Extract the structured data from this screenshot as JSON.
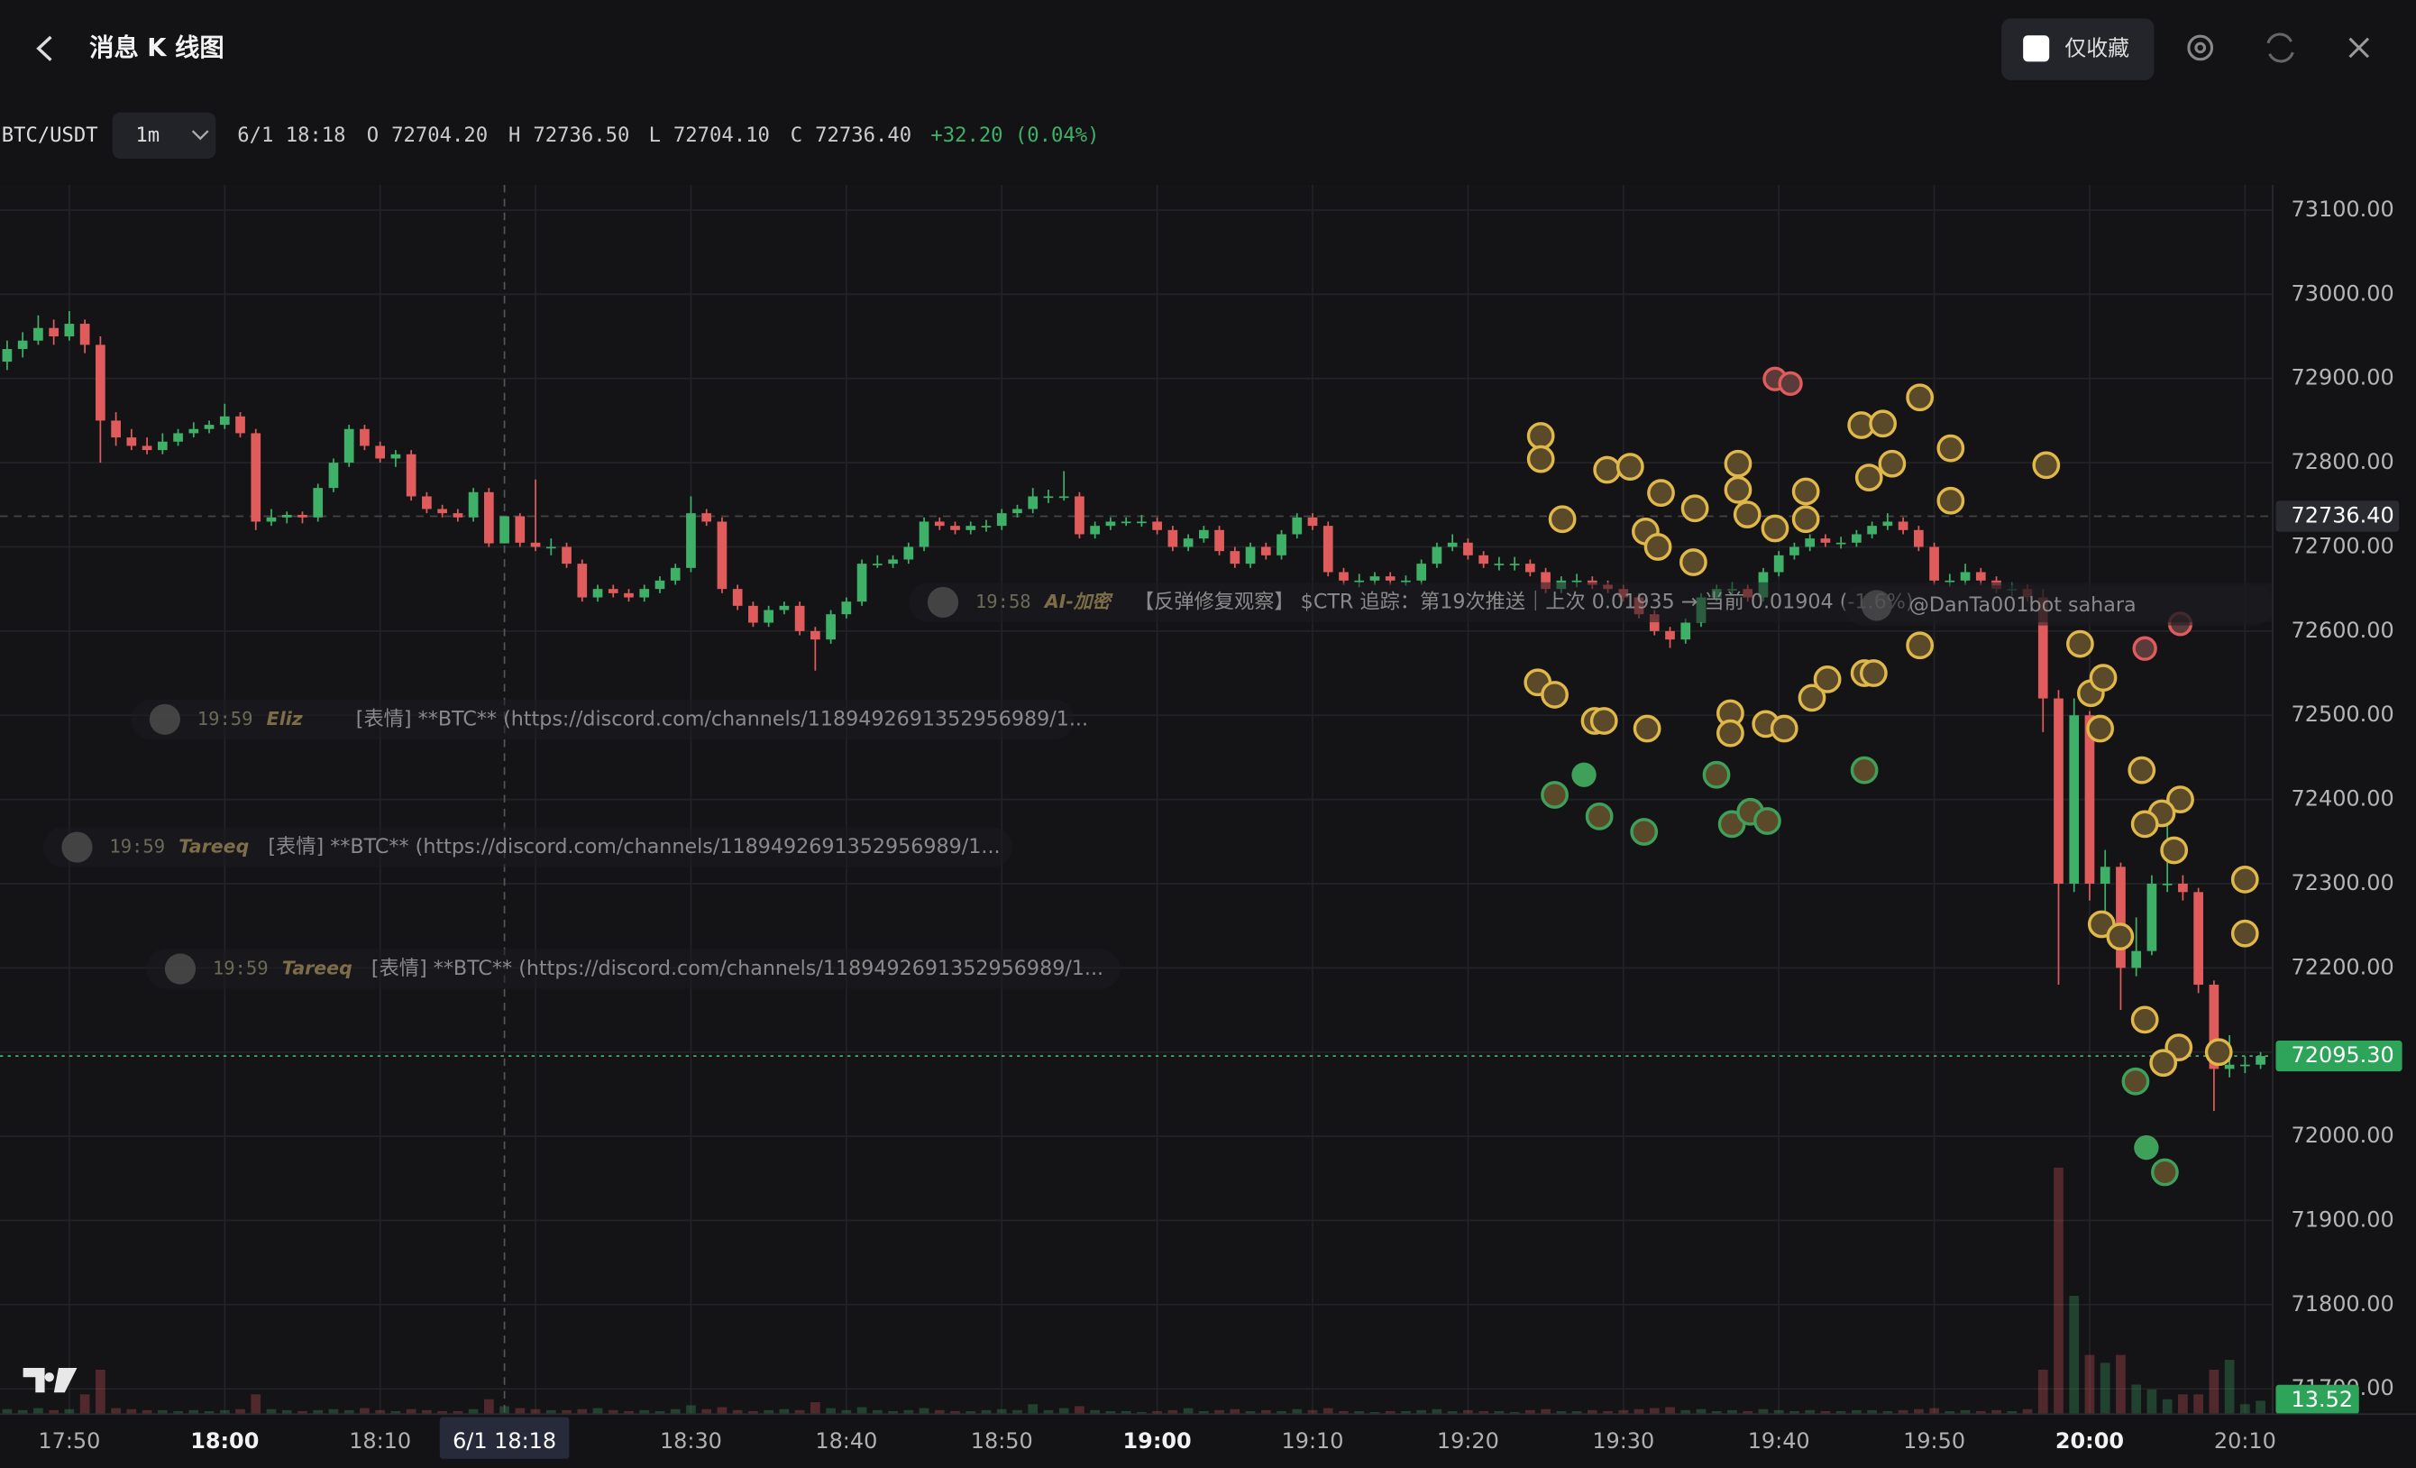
{
  "header": {
    "title": "消息 K 线图",
    "favorites_only": "仅收藏"
  },
  "chart_data": {
    "type": "candlestick",
    "symbol": "BTC/USDT",
    "interval": "1m",
    "legend": {
      "time": "6/1 18:18",
      "items": [
        {
          "label": "O",
          "value": "72704.20"
        },
        {
          "label": "H",
          "value": "72736.50"
        },
        {
          "label": "L",
          "value": "72704.10"
        },
        {
          "label": "C",
          "value": "72736.40"
        }
      ],
      "change": "+32.20 (0.04%)"
    },
    "ylim": [
      71670,
      73130
    ],
    "yticks": [
      {
        "value": 73100,
        "label": "73100.00"
      },
      {
        "value": 73000,
        "label": "73000.00"
      },
      {
        "value": 72900,
        "label": "72900.00"
      },
      {
        "value": 72800,
        "label": "72800.00"
      },
      {
        "value": 72700,
        "label": "72700.00"
      },
      {
        "value": 72600,
        "label": "72600.00"
      },
      {
        "value": 72500,
        "label": "72500.00"
      },
      {
        "value": 72400,
        "label": "72400.00"
      },
      {
        "value": 72300,
        "label": "72300.00"
      },
      {
        "value": 72200,
        "label": "72200.00"
      },
      {
        "value": 72100,
        "label": "72100.00"
      },
      {
        "value": 72000,
        "label": "72000.00"
      },
      {
        "value": 71900,
        "label": "71900.00"
      },
      {
        "value": 71800,
        "label": "71800.00"
      },
      {
        "value": 71700,
        "label": "71700.00"
      }
    ],
    "xlim": [
      -0.46,
      145.78
    ],
    "xticks": [
      {
        "value": 4,
        "label": "17:50"
      },
      {
        "value": 14,
        "label": "18:00"
      },
      {
        "value": 24,
        "label": "18:10"
      },
      {
        "value": 34,
        "label": "18:20"
      },
      {
        "value": 44,
        "label": "18:30"
      },
      {
        "value": 54,
        "label": "18:40"
      },
      {
        "value": 64,
        "label": "18:50"
      },
      {
        "value": 74,
        "label": "19:00"
      },
      {
        "value": 84,
        "label": "19:10"
      },
      {
        "value": 94,
        "label": "19:20"
      },
      {
        "value": 104,
        "label": "19:30"
      },
      {
        "value": 114,
        "label": "19:40"
      },
      {
        "value": 124,
        "label": "19:50"
      },
      {
        "value": 134,
        "label": "20:00"
      },
      {
        "value": 144,
        "label": "20:10"
      }
    ],
    "grid": true,
    "up_color": "#3fb068",
    "down_color": "#e05c5c",
    "crosshair_index": 32,
    "last_price": 72095.3,
    "last_price_label": "72095.30",
    "candles": [
      [
        72920,
        72945,
        72910,
        72935
      ],
      [
        72935,
        72955,
        72925,
        72945
      ],
      [
        72945,
        72975,
        72940,
        72960
      ],
      [
        72960,
        72970,
        72940,
        72950
      ],
      [
        72950,
        72980,
        72945,
        72965
      ],
      [
        72965,
        72970,
        72930,
        72940
      ],
      [
        72940,
        72950,
        72800,
        72850
      ],
      [
        72850,
        72860,
        72820,
        72830
      ],
      [
        72830,
        72840,
        72815,
        72820
      ],
      [
        72820,
        72830,
        72810,
        72815
      ],
      [
        72815,
        72835,
        72810,
        72825
      ],
      [
        72825,
        72840,
        72820,
        72835
      ],
      [
        72835,
        72848,
        72830,
        72840
      ],
      [
        72840,
        72850,
        72835,
        72845
      ],
      [
        72845,
        72870,
        72840,
        72855
      ],
      [
        72855,
        72860,
        72830,
        72835
      ],
      [
        72835,
        72840,
        72720,
        72730
      ],
      [
        72730,
        72745,
        72725,
        72735
      ],
      [
        72735,
        72742,
        72728,
        72738
      ],
      [
        72738,
        72742,
        72728,
        72735
      ],
      [
        72735,
        72775,
        72730,
        72770
      ],
      [
        72770,
        72805,
        72765,
        72800
      ],
      [
        72800,
        72845,
        72795,
        72840
      ],
      [
        72840,
        72845,
        72815,
        72820
      ],
      [
        72820,
        72825,
        72800,
        72805
      ],
      [
        72805,
        72815,
        72795,
        72810
      ],
      [
        72810,
        72815,
        72755,
        72760
      ],
      [
        72760,
        72765,
        72740,
        72745
      ],
      [
        72745,
        72750,
        72735,
        72740
      ],
      [
        72740,
        72745,
        72730,
        72735
      ],
      [
        72735,
        72770,
        72730,
        72765
      ],
      [
        72765,
        72770,
        72700,
        72704.2
      ],
      [
        72704.2,
        72736.5,
        72704.1,
        72736.4
      ],
      [
        72736.4,
        72740,
        72700,
        72705
      ],
      [
        72705,
        72780,
        72695,
        72700
      ],
      [
        72700,
        72710,
        72690,
        72700
      ],
      [
        72700,
        72705,
        72675,
        72680
      ],
      [
        72680,
        72685,
        72635,
        72640
      ],
      [
        72640,
        72655,
        72635,
        72650
      ],
      [
        72650,
        72655,
        72640,
        72645
      ],
      [
        72645,
        72650,
        72635,
        72640
      ],
      [
        72640,
        72655,
        72635,
        72650
      ],
      [
        72650,
        72665,
        72645,
        72660
      ],
      [
        72660,
        72680,
        72655,
        72675
      ],
      [
        72675,
        72760,
        72670,
        72740
      ],
      [
        72740,
        72745,
        72725,
        72730
      ],
      [
        72730,
        72735,
        72645,
        72650
      ],
      [
        72650,
        72655,
        72625,
        72630
      ],
      [
        72630,
        72635,
        72605,
        72610
      ],
      [
        72610,
        72630,
        72605,
        72625
      ],
      [
        72625,
        72635,
        72620,
        72630
      ],
      [
        72630,
        72635,
        72595,
        72600
      ],
      [
        72600,
        72605,
        72553,
        72590
      ],
      [
        72590,
        72625,
        72585,
        72620
      ],
      [
        72620,
        72640,
        72615,
        72635
      ],
      [
        72635,
        72685,
        72630,
        72680
      ],
      [
        72680,
        72690,
        72675,
        72680
      ],
      [
        72680,
        72690,
        72675,
        72685
      ],
      [
        72685,
        72705,
        72680,
        72700
      ],
      [
        72700,
        72735,
        72695,
        72730
      ],
      [
        72730,
        72735,
        72720,
        72725
      ],
      [
        72725,
        72730,
        72715,
        72720
      ],
      [
        72720,
        72730,
        72715,
        72725
      ],
      [
        72725,
        72732,
        72718,
        72725
      ],
      [
        72725,
        72745,
        72720,
        72740
      ],
      [
        72740,
        72750,
        72735,
        72745
      ],
      [
        72745,
        72770,
        72740,
        72760
      ],
      [
        72760,
        72768,
        72752,
        72760
      ],
      [
        72760,
        72790,
        72755,
        72760
      ],
      [
        72760,
        72765,
        72710,
        72715
      ],
      [
        72715,
        72730,
        72710,
        72725
      ],
      [
        72725,
        72735,
        72720,
        72730
      ],
      [
        72730,
        72735,
        72725,
        72730
      ],
      [
        72730,
        72738,
        72724,
        72730
      ],
      [
        72730,
        72735,
        72715,
        72720
      ],
      [
        72720,
        72725,
        72695,
        72700
      ],
      [
        72700,
        72715,
        72695,
        72710
      ],
      [
        72710,
        72725,
        72705,
        72720
      ],
      [
        72720,
        72725,
        72690,
        72695
      ],
      [
        72695,
        72700,
        72675,
        72680
      ],
      [
        72680,
        72705,
        72675,
        72700
      ],
      [
        72700,
        72705,
        72685,
        72690
      ],
      [
        72690,
        72720,
        72685,
        72715
      ],
      [
        72715,
        72740,
        72710,
        72735
      ],
      [
        72735,
        72740,
        72720,
        72725
      ],
      [
        72725,
        72730,
        72665,
        72670
      ],
      [
        72670,
        72675,
        72655,
        72660
      ],
      [
        72660,
        72668,
        72652,
        72660
      ],
      [
        72660,
        72670,
        72655,
        72665
      ],
      [
        72665,
        72670,
        72655,
        72660
      ],
      [
        72660,
        72666,
        72654,
        72660
      ],
      [
        72660,
        72685,
        72655,
        72680
      ],
      [
        72680,
        72705,
        72675,
        72700
      ],
      [
        72700,
        72715,
        72695,
        72705
      ],
      [
        72705,
        72710,
        72685,
        72690
      ],
      [
        72690,
        72695,
        72675,
        72680
      ],
      [
        72680,
        72688,
        72672,
        72680
      ],
      [
        72680,
        72688,
        72672,
        72680
      ],
      [
        72680,
        72685,
        72665,
        72670
      ],
      [
        72670,
        72675,
        72645,
        72650
      ],
      [
        72650,
        72665,
        72645,
        72660
      ],
      [
        72660,
        72668,
        72652,
        72660
      ],
      [
        72660,
        72665,
        72650,
        72655
      ],
      [
        72655,
        72660,
        72645,
        72650
      ],
      [
        72650,
        72655,
        72635,
        72640
      ],
      [
        72640,
        72645,
        72615,
        72620
      ],
      [
        72620,
        72625,
        72595,
        72600
      ],
      [
        72600,
        72605,
        72580,
        72590
      ],
      [
        72590,
        72615,
        72585,
        72610
      ],
      [
        72610,
        72645,
        72605,
        72640
      ],
      [
        72640,
        72655,
        72635,
        72650
      ],
      [
        72650,
        72658,
        72642,
        72650
      ],
      [
        72650,
        72655,
        72635,
        72640
      ],
      [
        72640,
        72675,
        72635,
        72670
      ],
      [
        72670,
        72695,
        72665,
        72690
      ],
      [
        72690,
        72705,
        72685,
        72700
      ],
      [
        72700,
        72715,
        72695,
        72710
      ],
      [
        72710,
        72715,
        72700,
        72705
      ],
      [
        72705,
        72712,
        72698,
        72705
      ],
      [
        72705,
        72720,
        72700,
        72715
      ],
      [
        72715,
        72730,
        72710,
        72725
      ],
      [
        72725,
        72740,
        72720,
        72730
      ],
      [
        72730,
        72735,
        72715,
        72720
      ],
      [
        72720,
        72725,
        72695,
        72700
      ],
      [
        72700,
        72705,
        72655,
        72660
      ],
      [
        72660,
        72668,
        72652,
        72660
      ],
      [
        72660,
        72680,
        72655,
        72670
      ],
      [
        72670,
        72675,
        72655,
        72660
      ],
      [
        72660,
        72665,
        72645,
        72650
      ],
      [
        72650,
        72658,
        72642,
        72650
      ],
      [
        72650,
        72655,
        72635,
        72640
      ],
      [
        72640,
        72650,
        72480,
        72520
      ],
      [
        72520,
        72530,
        72180,
        72300
      ],
      [
        72300,
        72520,
        72290,
        72500
      ],
      [
        72500,
        72505,
        72280,
        72300
      ],
      [
        72300,
        72340,
        72260,
        72320
      ],
      [
        72320,
        72325,
        72150,
        72200
      ],
      [
        72200,
        72260,
        72190,
        72220
      ],
      [
        72220,
        72310,
        72215,
        72300
      ],
      [
        72300,
        72370,
        72290,
        72300
      ],
      [
        72300,
        72310,
        72280,
        72290
      ],
      [
        72290,
        72295,
        72170,
        72180
      ],
      [
        72180,
        72185,
        72030,
        72080
      ],
      [
        72080,
        72120,
        72070,
        72085
      ],
      [
        72085,
        72095,
        72075,
        72085
      ],
      [
        72085,
        72100,
        72080,
        72095.3
      ]
    ],
    "volumes": [
      5,
      4,
      6,
      4,
      5,
      20,
      45,
      6,
      5,
      4,
      4,
      3,
      4,
      3,
      4,
      5,
      20,
      5,
      4,
      3,
      4,
      5,
      4,
      6,
      4,
      3,
      5,
      4,
      3,
      3,
      5,
      15,
      8,
      6,
      5,
      4,
      4,
      5,
      6,
      4,
      3,
      4,
      3,
      5,
      9,
      5,
      7,
      4,
      3,
      4,
      5,
      4,
      12,
      6,
      4,
      7,
      4,
      3,
      4,
      6,
      4,
      3,
      3,
      4,
      5,
      4,
      10,
      4,
      6,
      8,
      4,
      3,
      3,
      2,
      3,
      4,
      6,
      3,
      4,
      5,
      3,
      4,
      3,
      5,
      4,
      6,
      3,
      3,
      2,
      3,
      3,
      4,
      5,
      3,
      4,
      3,
      3,
      2,
      4,
      5,
      3,
      3,
      4,
      3,
      4,
      5,
      6,
      7,
      4,
      5,
      3,
      4,
      3,
      5,
      4,
      3,
      4,
      3,
      3,
      4,
      4,
      3,
      4,
      5,
      6,
      3,
      4,
      3,
      4,
      3,
      5,
      45,
      250,
      120,
      60,
      52,
      60,
      30,
      25,
      15,
      20,
      20,
      45,
      55,
      10,
      13.52
    ]
  },
  "messages": [
    {
      "time": "19:58",
      "author": "AI-加密",
      "text": "【反弹修复观察】 $CTR 追踪：第19次推送｜上次 0.01935 → 当前 0.01904 (-1.6%)"
    },
    {
      "time": "19:59",
      "author": "Eliz",
      "text": "[表情] **BTC** (https://discord.com/channels/1189492691352956989/1..."
    },
    {
      "time": "19:59",
      "author": "Tareeq",
      "text": "[表情] **BTC** (https://discord.com/channels/1189492691352956989/1..."
    },
    {
      "time": "19:59",
      "author": "Tareeq",
      "text": "[表情] **BTC** (https://discord.com/channels/1189492691352956989/1..."
    },
    {
      "text": "@DanTa001bot sahara"
    }
  ]
}
